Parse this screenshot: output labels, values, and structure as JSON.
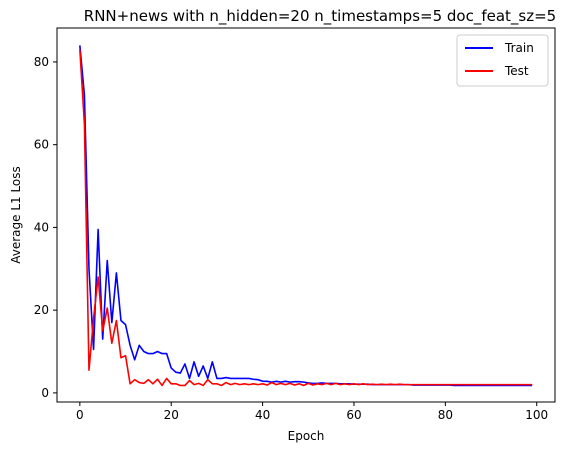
{
  "chart_data": {
    "type": "line",
    "title": "RNN+news with n_hidden=20 n_timestamps=5 doc_feat_sz=5",
    "xlabel": "Epoch",
    "ylabel": "Average L1 Loss",
    "xlim": [
      -5,
      104
    ],
    "ylim": [
      -2.2,
      88.2
    ],
    "xticks": [
      0,
      20,
      40,
      60,
      80,
      100
    ],
    "yticks": [
      0,
      20,
      40,
      60,
      80
    ],
    "grid": false,
    "legend_position": "top-right",
    "x": [
      0,
      1,
      2,
      3,
      4,
      5,
      6,
      7,
      8,
      9,
      10,
      11,
      12,
      13,
      14,
      15,
      16,
      17,
      18,
      19,
      20,
      21,
      22,
      23,
      24,
      25,
      26,
      27,
      28,
      29,
      30,
      31,
      32,
      33,
      34,
      35,
      36,
      37,
      38,
      39,
      40,
      41,
      42,
      43,
      44,
      45,
      46,
      47,
      48,
      49,
      50,
      51,
      52,
      53,
      54,
      55,
      56,
      57,
      58,
      59,
      60,
      61,
      62,
      63,
      64,
      65,
      66,
      67,
      68,
      69,
      70,
      71,
      72,
      73,
      74,
      75,
      76,
      77,
      78,
      79,
      80,
      81,
      82,
      83,
      84,
      85,
      86,
      87,
      88,
      89,
      90,
      91,
      92,
      93,
      94,
      95,
      96,
      97,
      98,
      99
    ],
    "series": [
      {
        "name": "Train",
        "color": "#0000ff",
        "values": [
          84,
          72,
          30,
          10.5,
          39.5,
          13,
          32,
          17,
          29,
          17.5,
          16.5,
          11.5,
          8,
          11.5,
          10,
          9.5,
          9.5,
          10,
          9.5,
          9.5,
          6,
          5,
          4.8,
          7,
          3.5,
          7.5,
          4,
          6.5,
          3.5,
          7.5,
          3.5,
          3.5,
          3.7,
          3.5,
          3.5,
          3.5,
          3.5,
          3.5,
          3.3,
          3.2,
          2.8,
          2.8,
          2.6,
          2.8,
          2.6,
          2.8,
          2.6,
          2.7,
          2.7,
          2.6,
          2.4,
          2.3,
          2.3,
          2.4,
          2.3,
          2.3,
          2.3,
          2.2,
          2.2,
          2.2,
          2.1,
          2.1,
          2.1,
          2.1,
          2,
          2,
          2,
          2,
          2,
          2,
          2,
          2,
          2,
          1.9,
          1.9,
          1.9,
          1.9,
          1.9,
          1.9,
          1.9,
          1.9,
          1.9,
          1.8,
          1.8,
          1.8,
          1.8,
          1.8,
          1.8,
          1.8,
          1.8,
          1.8,
          1.8,
          1.8,
          1.8,
          1.8,
          1.8,
          1.8,
          1.8,
          1.8,
          1.8
        ]
      },
      {
        "name": "Test",
        "color": "#ff0000",
        "values": [
          83,
          65,
          5.5,
          18,
          28,
          15,
          20.5,
          12,
          17.5,
          8.5,
          9,
          2.2,
          3.2,
          2.5,
          2.3,
          3.2,
          2.2,
          3.3,
          1.8,
          3.5,
          2.2,
          2.2,
          1.8,
          1.8,
          3,
          2,
          2.3,
          1.8,
          3.2,
          2.2,
          2.2,
          1.8,
          2.5,
          2,
          2.3,
          2,
          2.2,
          2,
          2.2,
          2,
          2.2,
          1.9,
          2.5,
          2,
          2.3,
          2,
          2.3,
          1.9,
          2.2,
          1.8,
          2.3,
          1.9,
          2.2,
          2,
          2.3,
          2,
          2.3,
          2,
          2.2,
          2,
          2.2,
          2,
          2.2,
          2,
          2.1,
          2,
          2.1,
          2,
          2.1,
          2,
          2.1,
          2,
          2,
          2,
          2,
          2,
          2,
          2,
          2,
          2,
          2,
          2,
          2,
          2,
          2,
          2,
          2,
          2,
          2,
          2,
          2,
          2,
          2,
          2,
          2,
          2,
          2,
          2,
          2,
          2
        ]
      }
    ]
  }
}
